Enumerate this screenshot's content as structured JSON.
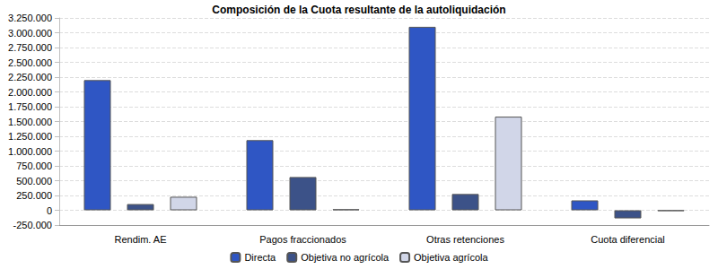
{
  "chart_data": {
    "type": "bar",
    "title": "Composición de la Cuota resultante de la autoliquidación",
    "categories": [
      "Rendim. AE",
      "Pagos fraccionados",
      "Otras retenciones",
      "Cuota diferencial"
    ],
    "series": [
      {
        "name": "Directa",
        "color": "#2f56c4",
        "values": [
          2200000,
          1185000,
          3100000,
          167000
        ]
      },
      {
        "name": "Objetiva no agrícola",
        "color": "#3c5288",
        "values": [
          105000,
          562000,
          275000,
          -137000
        ]
      },
      {
        "name": "Objetiva agrícola",
        "color": "#d1d6e8",
        "values": [
          228000,
          18000,
          1582000,
          -12000
        ]
      }
    ],
    "ylim": [
      -250000,
      3250000
    ],
    "yticks": [
      {
        "value": -250000,
        "label": "-250.000"
      },
      0,
      {
        "value": 250000,
        "label": "250.000"
      },
      {
        "value": 500000,
        "label": "500.000"
      },
      {
        "value": 750000,
        "label": "750.000"
      },
      {
        "value": 1000000,
        "label": "1.000.000"
      },
      {
        "value": 1250000,
        "label": "1.250.000"
      },
      {
        "value": 1500000,
        "label": "1.500.000"
      },
      {
        "value": 1750000,
        "label": "1.750.000"
      },
      {
        "value": 2000000,
        "label": "2.000.000"
      },
      {
        "value": 2250000,
        "label": "2.250.000"
      },
      {
        "value": 2500000,
        "label": "2.500.000"
      },
      {
        "value": 2750000,
        "label": "2.750.000"
      },
      {
        "value": 3000000,
        "label": "3.000.000"
      },
      {
        "value": 3250000,
        "label": "3.250.000"
      }
    ],
    "grid": true,
    "legend": "bottom"
  }
}
